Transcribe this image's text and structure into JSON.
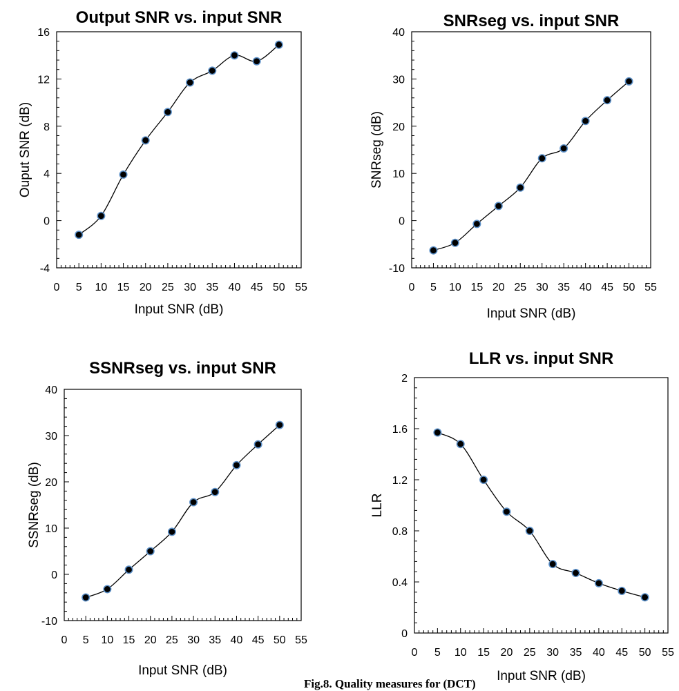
{
  "figure_caption": "Fig.8. Quality measures for (DCT)",
  "chart_data": [
    {
      "type": "line",
      "title": "Output SNR vs. input SNR",
      "xlabel": "Input SNR (dB)",
      "ylabel": "Ouput SNR (dB)",
      "xlim": [
        0,
        55
      ],
      "ylim": [
        -4,
        16
      ],
      "x_ticks": [
        "0",
        "5",
        "10",
        "15",
        "20",
        "25",
        "30",
        "35",
        "40",
        "45",
        "50",
        "55"
      ],
      "y_ticks": [
        "-4",
        "0",
        "4",
        "8",
        "12",
        "16"
      ],
      "x": [
        5,
        10,
        15,
        20,
        25,
        30,
        35,
        40,
        45,
        50
      ],
      "values": [
        -1.2,
        0.4,
        3.9,
        6.8,
        9.2,
        11.7,
        12.7,
        14.0,
        13.5,
        14.9
      ],
      "grid": false,
      "marker_color": "#000000",
      "marker_edge_color": "#5b8fc7"
    },
    {
      "type": "line",
      "title": "SNRseg vs. input SNR",
      "xlabel": "Input SNR (dB)",
      "ylabel": "SNRseg (dB)",
      "xlim": [
        0,
        55
      ],
      "ylim": [
        -10,
        40
      ],
      "x_ticks": [
        "0",
        "5",
        "10",
        "15",
        "20",
        "25",
        "30",
        "35",
        "40",
        "45",
        "50",
        "55"
      ],
      "y_ticks": [
        "-10",
        "0",
        "10",
        "20",
        "30",
        "40"
      ],
      "x": [
        5,
        10,
        15,
        20,
        25,
        30,
        35,
        40,
        45,
        50
      ],
      "values": [
        -6.3,
        -4.7,
        -0.7,
        3.1,
        7.0,
        13.2,
        15.3,
        21.1,
        25.5,
        29.5
      ],
      "grid": false,
      "marker_color": "#000000",
      "marker_edge_color": "#5b8fc7"
    },
    {
      "type": "line",
      "title": "SSNRseg vs. input SNR",
      "xlabel": "Input SNR (dB)",
      "ylabel": "SSNRseg (dB)",
      "xlim": [
        0,
        55
      ],
      "ylim": [
        -10,
        40
      ],
      "x_ticks": [
        "0",
        "5",
        "10",
        "15",
        "20",
        "25",
        "30",
        "35",
        "40",
        "45",
        "50",
        "55"
      ],
      "y_ticks": [
        "-10",
        "0",
        "10",
        "20",
        "30",
        "40"
      ],
      "x": [
        5,
        10,
        15,
        20,
        25,
        30,
        35,
        40,
        45,
        50
      ],
      "values": [
        -5.0,
        -3.2,
        1.0,
        5.0,
        9.2,
        15.6,
        17.8,
        23.6,
        28.1,
        32.3
      ],
      "grid": false,
      "marker_color": "#000000",
      "marker_edge_color": "#5b8fc7"
    },
    {
      "type": "line",
      "title": "LLR vs. input SNR",
      "xlabel": "Input SNR (dB)",
      "ylabel": "LLR",
      "xlim": [
        0,
        55
      ],
      "ylim": [
        0,
        2
      ],
      "x_ticks": [
        "0",
        "5",
        "10",
        "15",
        "20",
        "25",
        "30",
        "35",
        "40",
        "45",
        "50",
        "55"
      ],
      "y_ticks": [
        "0",
        "0.4",
        "0.8",
        "1.2",
        "1.6",
        "2"
      ],
      "x": [
        5,
        10,
        15,
        20,
        25,
        30,
        35,
        40,
        45,
        50
      ],
      "values": [
        1.57,
        1.48,
        1.2,
        0.95,
        0.8,
        0.54,
        0.47,
        0.39,
        0.33,
        0.28
      ],
      "grid": false,
      "marker_color": "#000000",
      "marker_edge_color": "#5b8fc7"
    }
  ]
}
